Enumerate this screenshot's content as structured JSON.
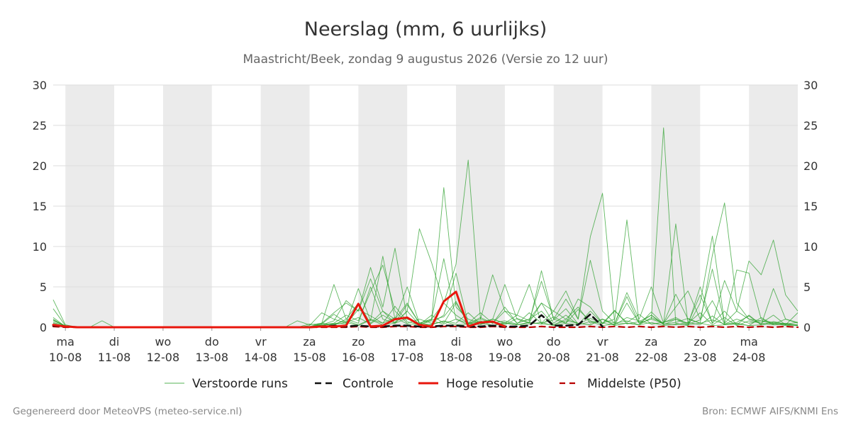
{
  "chart_data": {
    "type": "line",
    "title": "Neerslag (mm, 6 uurlijks)",
    "subtitle": "Maastricht/Beek, zondag  9 augustus 2026 (Versie zo 12 uur)",
    "ylim": [
      0,
      30
    ],
    "yticks": [
      0,
      5,
      10,
      15,
      20,
      25,
      30
    ],
    "x_range_days": [
      -0.25,
      15.0
    ],
    "x_day_ticks": [
      {
        "day": 0,
        "weekday": "ma",
        "date": "10-08"
      },
      {
        "day": 1,
        "weekday": "di",
        "date": "11-08"
      },
      {
        "day": 2,
        "weekday": "wo",
        "date": "12-08"
      },
      {
        "day": 3,
        "weekday": "do",
        "date": "13-08"
      },
      {
        "day": 4,
        "weekday": "vr",
        "date": "14-08"
      },
      {
        "day": 5,
        "weekday": "za",
        "date": "15-08"
      },
      {
        "day": 6,
        "weekday": "zo",
        "date": "16-08"
      },
      {
        "day": 7,
        "weekday": "ma",
        "date": "17-08"
      },
      {
        "day": 8,
        "weekday": "di",
        "date": "18-08"
      },
      {
        "day": 9,
        "weekday": "wo",
        "date": "19-08"
      },
      {
        "day": 10,
        "weekday": "do",
        "date": "20-08"
      },
      {
        "day": 11,
        "weekday": "vr",
        "date": "21-08"
      },
      {
        "day": 12,
        "weekday": "za",
        "date": "22-08"
      },
      {
        "day": 13,
        "weekday": "zo",
        "date": "23-08"
      },
      {
        "day": 14,
        "weekday": "ma",
        "date": "24-08"
      }
    ],
    "shaded_day_bands": [
      [
        0,
        1
      ],
      [
        2,
        3
      ],
      [
        4,
        5
      ],
      [
        6,
        7
      ],
      [
        8,
        9
      ],
      [
        10,
        11
      ],
      [
        12,
        13
      ],
      [
        14,
        15
      ]
    ],
    "grid": true,
    "legend_position": "bottom",
    "legend": [
      {
        "label": "Verstoorde runs",
        "style": "thin-green"
      },
      {
        "label": "Controle",
        "style": "dashed-black"
      },
      {
        "label": "Hoge resolutie",
        "style": "thick-red"
      },
      {
        "label": "Middelste (P50)",
        "style": "dashed-darkred"
      }
    ],
    "colors": {
      "ensemble": "#2ca02c",
      "control": "#111111",
      "hires": "#e8160c",
      "median": "#b80000",
      "band": "#ebebeb",
      "grid": "#dddddd"
    },
    "series": [
      {
        "name": "Hoge resolutie",
        "x_days": [
          -0.25,
          0,
          0.25,
          0.5,
          0.75,
          1,
          1.25,
          1.5,
          1.75,
          2,
          2.25,
          2.5,
          2.75,
          3,
          3.25,
          3.5,
          3.75,
          4,
          4.25,
          4.5,
          4.75,
          5,
          5.25,
          5.5,
          5.75,
          6,
          6.25,
          6.5,
          6.75,
          7,
          7.25,
          7.5,
          7.75,
          8,
          8.25,
          8.5,
          8.75,
          9
        ],
        "values": [
          0.3,
          0.1,
          0,
          0,
          0,
          0,
          0,
          0,
          0,
          0,
          0,
          0,
          0,
          0,
          0,
          0,
          0,
          0,
          0,
          0,
          0,
          0,
          0.1,
          0.1,
          0.2,
          2.9,
          0.1,
          0.2,
          1.0,
          1.2,
          0.3,
          0.1,
          3.2,
          4.4,
          0.1,
          0.6,
          0.7,
          0.1
        ]
      },
      {
        "name": "Controle",
        "x_days": [
          -0.25,
          0,
          0.25,
          0.5,
          0.75,
          1,
          1.25,
          1.5,
          1.75,
          2,
          2.25,
          2.5,
          2.75,
          3,
          3.25,
          3.5,
          3.75,
          4,
          4.25,
          4.5,
          4.75,
          5,
          5.25,
          5.5,
          5.75,
          6,
          6.25,
          6.5,
          6.75,
          7,
          7.25,
          7.5,
          7.75,
          8,
          8.25,
          8.5,
          8.75,
          9,
          9.25,
          9.5,
          9.75,
          10,
          10.25,
          10.5,
          10.75,
          11
        ],
        "values": [
          0.2,
          0.1,
          0,
          0,
          0,
          0,
          0,
          0,
          0,
          0,
          0,
          0,
          0,
          0,
          0,
          0,
          0,
          0,
          0,
          0,
          0,
          0,
          0.1,
          0.2,
          0.1,
          0.2,
          0.1,
          0.1,
          0.2,
          0.2,
          0.1,
          0.1,
          0.2,
          0.2,
          0.1,
          0.1,
          0.2,
          0.1,
          0.1,
          0.2,
          1.5,
          0.2,
          0.2,
          0.3,
          1.6,
          0.1
        ]
      },
      {
        "name": "Middelste (P50)",
        "x_days": [
          -0.25,
          0,
          0.25,
          0.5,
          0.75,
          1,
          1.25,
          1.5,
          1.75,
          2,
          2.25,
          2.5,
          2.75,
          3,
          3.25,
          3.5,
          3.75,
          4,
          4.25,
          4.5,
          4.75,
          5,
          5.25,
          5.5,
          5.75,
          6,
          6.25,
          6.5,
          6.75,
          7,
          7.25,
          7.5,
          7.75,
          8,
          8.25,
          8.5,
          8.75,
          9,
          9.25,
          9.5,
          9.75,
          10,
          10.25,
          10.5,
          10.75,
          11,
          11.25,
          11.5,
          11.75,
          12,
          12.25,
          12.5,
          12.75,
          13,
          13.25,
          13.5,
          13.75,
          14,
          14.25,
          14.5,
          14.75,
          15
        ],
        "values": [
          0.1,
          0,
          0,
          0,
          0,
          0,
          0,
          0,
          0,
          0,
          0,
          0,
          0,
          0,
          0,
          0,
          0,
          0,
          0,
          0,
          0,
          0,
          0,
          0,
          0,
          0.1,
          0,
          0,
          0.1,
          0.1,
          0,
          0,
          0.1,
          0.1,
          0,
          0,
          0.1,
          0,
          0,
          0,
          0.1,
          0,
          0,
          0,
          0.1,
          0,
          0.1,
          0,
          0.1,
          0,
          0.1,
          0,
          0.1,
          0,
          0.1,
          0,
          0.1,
          0,
          0.1,
          0,
          0.1,
          0
        ]
      }
    ],
    "ensemble_x_start_day": -0.25,
    "ensemble_step_days": 0.25,
    "ensemble_runs": [
      [
        3.4,
        0.3,
        0,
        0,
        0,
        0,
        0,
        0,
        0,
        0,
        0,
        0,
        0,
        0,
        0,
        0,
        0,
        0,
        0,
        0,
        0,
        0,
        0.5,
        5.3,
        1.0,
        0.5,
        5.0,
        1.0,
        0.5,
        2.0,
        12.2,
        8.0,
        3.0,
        1.5,
        0.5,
        1.0,
        6.5,
        2.0,
        0.5,
        1.0,
        3.0,
        2.0,
        1.0,
        0.5,
        0.3,
        1.0,
        0.5,
        0.8,
        0.3,
        1.2,
        0.5,
        4.1,
        1.0,
        0.5,
        8.9,
        15.4,
        3.0,
        1.0,
        0.5,
        0.3,
        0.5,
        0.2
      ],
      [
        2.3,
        0.2,
        0,
        0,
        0.8,
        0,
        0,
        0,
        0,
        0,
        0,
        0,
        0,
        0,
        0,
        0,
        0,
        0,
        0,
        0,
        0.8,
        0.3,
        0.5,
        1.8,
        3.0,
        2.0,
        7.4,
        2.5,
        9.8,
        1.0,
        0.5,
        1.0,
        17.3,
        2.5,
        1.0,
        0.5,
        1.0,
        5.3,
        1.0,
        0.5,
        7.0,
        1.0,
        0.5,
        3.5,
        2.5,
        0.5,
        1.0,
        13.3,
        0.5,
        1.0,
        24.7,
        0.5,
        0.2,
        3.0,
        11.3,
        0.5,
        2.0,
        1.0,
        0.8,
        0.6,
        0.4,
        0.2
      ],
      [
        1.2,
        0.1,
        0,
        0,
        0,
        0,
        0,
        0,
        0,
        0,
        0,
        0,
        0,
        0,
        0,
        0,
        0,
        0,
        0,
        0,
        0,
        0.2,
        1.8,
        1.0,
        0.5,
        4.8,
        0.8,
        8.8,
        1.0,
        5.0,
        0.5,
        1.0,
        3.0,
        7.8,
        20.7,
        1.0,
        0.5,
        2.0,
        1.5,
        5.3,
        0.5,
        2.0,
        4.5,
        1.0,
        11.2,
        16.6,
        0.5,
        4.3,
        1.0,
        5.0,
        0.5,
        12.8,
        0.5,
        4.0,
        0.5,
        5.8,
        2.0,
        8.2,
        6.5,
        10.8,
        4.0,
        2.0
      ],
      [
        0.8,
        0.2,
        0,
        0,
        0,
        0,
        0,
        0,
        0,
        0,
        0,
        0,
        0,
        0,
        0,
        0,
        0,
        0,
        0,
        0,
        0,
        0,
        0.3,
        0.8,
        3.3,
        2.0,
        6.0,
        2.0,
        1.0,
        3.0,
        0.5,
        1.0,
        8.5,
        1.0,
        0.5,
        0.6,
        1.0,
        0.5,
        1.5,
        0.8,
        5.7,
        1.0,
        3.5,
        1.0,
        8.3,
        2.0,
        0.5,
        3.8,
        0.5,
        1.0,
        0.5,
        2.5,
        4.5,
        1.0,
        7.2,
        0.5,
        7.1,
        6.7,
        1.0,
        0.5,
        0.3,
        0.2
      ],
      [
        0.5,
        0.1,
        0,
        0,
        0,
        0,
        0,
        0,
        0,
        0,
        0,
        0,
        0,
        0,
        0,
        0,
        0,
        0,
        0,
        0,
        0,
        0.4,
        0.2,
        0.5,
        1.5,
        0.8,
        4.4,
        7.7,
        2.0,
        0.5,
        1.0,
        0.5,
        1.5,
        6.7,
        0.5,
        0.3,
        1.0,
        0.5,
        0.3,
        0.6,
        3.0,
        0.5,
        1.5,
        0.3,
        2.0,
        0.5,
        0.3,
        1.2,
        0.8,
        0.4,
        0.6,
        1.0,
        0.3,
        5.0,
        0.5,
        2.0,
        0.3,
        1.5,
        0.3,
        4.8,
        1.0,
        0.6
      ],
      [
        1.0,
        0.1,
        0,
        0,
        0,
        0,
        0,
        0,
        0,
        0,
        0,
        0,
        0,
        0,
        0,
        0,
        0,
        0,
        0,
        0,
        0,
        0.1,
        0.5,
        0.3,
        1.0,
        3.0,
        0.5,
        2.0,
        0.5,
        2.0,
        0.3,
        1.5,
        0.5,
        3.0,
        0.5,
        1.8,
        0.5,
        2.5,
        0.5,
        1.0,
        2.0,
        0.3,
        1.0,
        2.5,
        0.5,
        1.0,
        0.3,
        3.0,
        0.5,
        1.5,
        0.3,
        1.0,
        0.5,
        1.8,
        0.3,
        1.2,
        0.2,
        0.8,
        0.5,
        1.5,
        0.3,
        1.8
      ],
      [
        0.3,
        0.1,
        0,
        0,
        0,
        0,
        0,
        0,
        0,
        0,
        0,
        0,
        0,
        0,
        0,
        0,
        0,
        0,
        0,
        0,
        0,
        0,
        0.2,
        0.4,
        0.8,
        0.3,
        1.0,
        0.5,
        1.2,
        0.4,
        0.3,
        0.8,
        0.4,
        1.0,
        0.3,
        0.5,
        0.2,
        0.6,
        0.3,
        0.4,
        0.6,
        0.2,
        0.5,
        0.3,
        0.7,
        0.2,
        0.4,
        0.5,
        0.3,
        0.6,
        0.2,
        0.4,
        0.3,
        0.5,
        0.2,
        0.3,
        0.4,
        0.2,
        0.3,
        0.5,
        0.2,
        0.3
      ],
      [
        0.6,
        0.2,
        0,
        0,
        0,
        0,
        0,
        0,
        0,
        0,
        0,
        0,
        0,
        0,
        0,
        0,
        0,
        0,
        0,
        0,
        0,
        0,
        0.4,
        1.6,
        0.6,
        1.2,
        0.4,
        1.5,
        0.6,
        2.8,
        0.5,
        0.3,
        0.8,
        0.5,
        1.8,
        0.4,
        0.7,
        0.3,
        1.1,
        0.6,
        0.4,
        1.3,
        0.5,
        2.2,
        0.8,
        0.4,
        2.0,
        0.6,
        1.6,
        0.4,
        0.6,
        1.2,
        0.4,
        0.9,
        3.3,
        0.4,
        1.0,
        0.5,
        0.8,
        0.4,
        1.0,
        0.5
      ],
      [
        0.2,
        0,
        0,
        0,
        0,
        0,
        0,
        0,
        0,
        0,
        0,
        0,
        0,
        0,
        0,
        0,
        0,
        0,
        0,
        0,
        0,
        0,
        0.1,
        0.3,
        0.6,
        0.2,
        0.9,
        0.3,
        0.5,
        1.1,
        0.2,
        0.4,
        0.7,
        0.3,
        0.4,
        0.8,
        0.2,
        0.5,
        0.3,
        0.6,
        0.4,
        0.3,
        0.8,
        0.5,
        0.3,
        1.0,
        0.2,
        0.5,
        0.3,
        1.9,
        0.4,
        0.3,
        0.6,
        0.3,
        1.4,
        0.3,
        0.5,
        0.2,
        1.2,
        0.3,
        0.4,
        0.3
      ],
      [
        0.9,
        0.1,
        0,
        0,
        0,
        0,
        0,
        0,
        0,
        0,
        0,
        0,
        0,
        0,
        0,
        0,
        0,
        0,
        0,
        0,
        0,
        0,
        0.3,
        0.5,
        0.4,
        2.2,
        1.4,
        0.5,
        2.6,
        0.7,
        0.3,
        0.9,
        1.3,
        3.2,
        0.4,
        1.2,
        0.5,
        0.8,
        0.4,
        1.8,
        0.5,
        0.9,
        2.3,
        0.4,
        1.1,
        0.5,
        2.1,
        0.4,
        0.7,
        1.5,
        0.4,
        0.6,
        1.1,
        0.5,
        0.9,
        0.4,
        0.6,
        1.4,
        0.3,
        0.7,
        0.4,
        0.6
      ]
    ],
    "footer_left": "Gegenereerd door MeteoVPS (meteo-service.nl)",
    "footer_right": "Bron: ECMWF AIFS/KNMI Ens"
  }
}
